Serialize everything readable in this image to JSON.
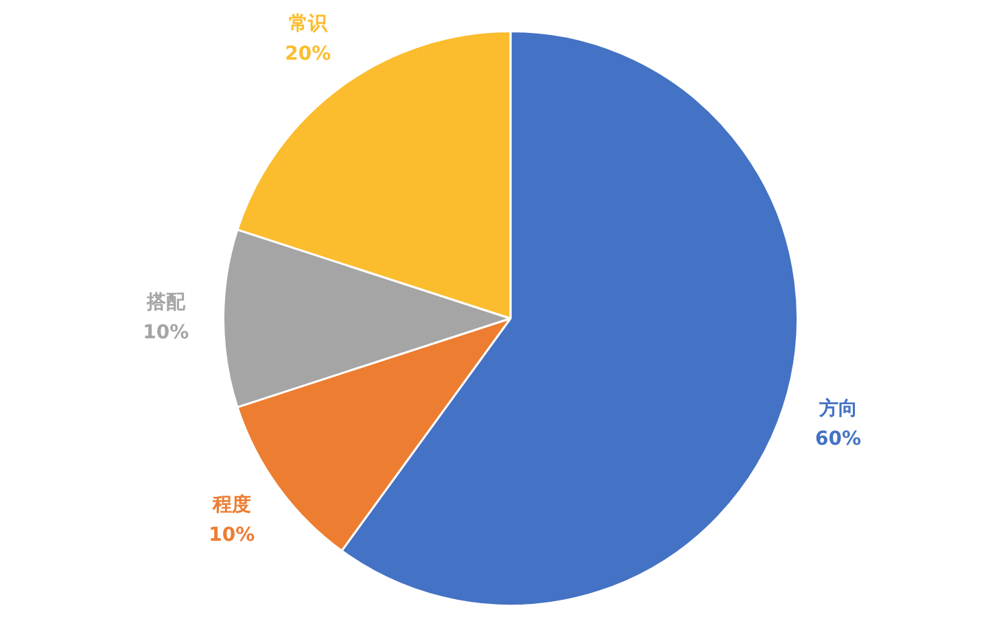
{
  "chart_data": {
    "type": "pie",
    "categories": [
      "方向",
      "程度",
      "搭配",
      "常识"
    ],
    "values": [
      60,
      10,
      10,
      20
    ],
    "colors": [
      "#4472c4",
      "#ed7d31",
      "#a5a5a5",
      "#fbbd2e"
    ],
    "value_labels": [
      "60%",
      "10%",
      "10%",
      "20%"
    ],
    "legend": false
  }
}
